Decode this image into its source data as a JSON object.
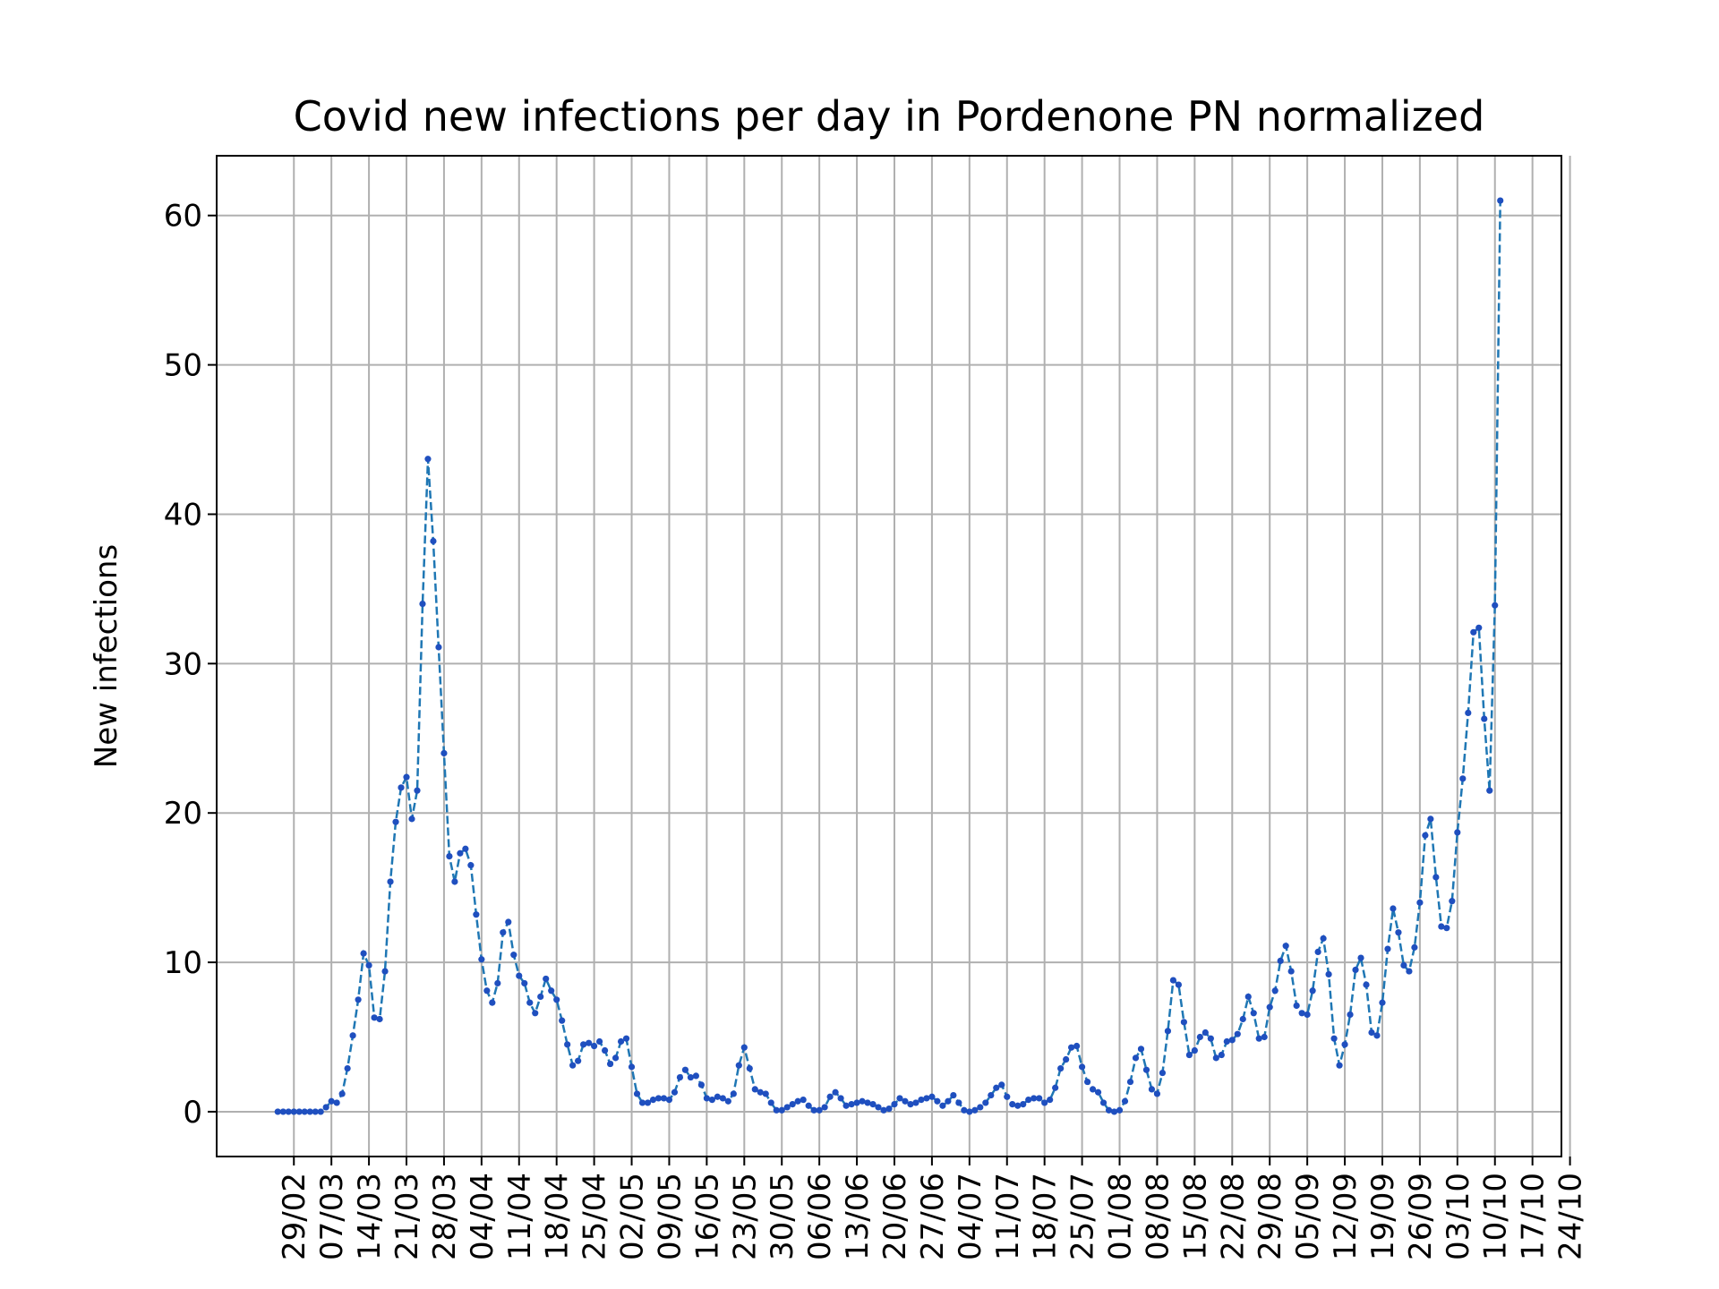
{
  "chart_data": {
    "type": "line",
    "title": "Covid new infections per day in Pordenone PN normalized",
    "xlabel": "",
    "ylabel": "New infections",
    "ylim": [
      -3.0,
      64.0
    ],
    "yticks": [
      0,
      10,
      20,
      30,
      40,
      50,
      60
    ],
    "grid": true,
    "legend": "none",
    "line_color": "#1f77b4",
    "marker_color": "#1f4fbf",
    "line_style": "dashed",
    "xticks": [
      {
        "label": "29/02",
        "day": 3
      },
      {
        "label": "07/03",
        "day": 10
      },
      {
        "label": "14/03",
        "day": 17
      },
      {
        "label": "21/03",
        "day": 24
      },
      {
        "label": "28/03",
        "day": 31
      },
      {
        "label": "04/04",
        "day": 38
      },
      {
        "label": "11/04",
        "day": 45
      },
      {
        "label": "18/04",
        "day": 52
      },
      {
        "label": "25/04",
        "day": 59
      },
      {
        "label": "02/05",
        "day": 66
      },
      {
        "label": "09/05",
        "day": 73
      },
      {
        "label": "16/05",
        "day": 80
      },
      {
        "label": "23/05",
        "day": 87
      },
      {
        "label": "30/05",
        "day": 94
      },
      {
        "label": "06/06",
        "day": 101
      },
      {
        "label": "13/06",
        "day": 108
      },
      {
        "label": "20/06",
        "day": 115
      },
      {
        "label": "27/06",
        "day": 122
      },
      {
        "label": "04/07",
        "day": 129
      },
      {
        "label": "11/07",
        "day": 136
      },
      {
        "label": "18/07",
        "day": 143
      },
      {
        "label": "25/07",
        "day": 150
      },
      {
        "label": "01/08",
        "day": 157
      },
      {
        "label": "08/08",
        "day": 164
      },
      {
        "label": "15/08",
        "day": 171
      },
      {
        "label": "22/08",
        "day": 178
      },
      {
        "label": "29/08",
        "day": 185
      },
      {
        "label": "05/09",
        "day": 192
      },
      {
        "label": "12/09",
        "day": 199
      },
      {
        "label": "19/09",
        "day": 206
      },
      {
        "label": "26/09",
        "day": 213
      },
      {
        "label": "03/10",
        "day": 220
      },
      {
        "label": "10/10",
        "day": 227
      },
      {
        "label": "17/10",
        "day": 234
      },
      {
        "label": "24/10",
        "day": 241
      }
    ],
    "series": [
      {
        "values": [
          0,
          0,
          0,
          0,
          0,
          0,
          0,
          0,
          0,
          0.3,
          0.7,
          0.6,
          1.2,
          2.9,
          5.1,
          7.5,
          10.6,
          9.8,
          6.3,
          6.2,
          9.4,
          15.4,
          19.4,
          21.7,
          22.4,
          19.6,
          21.5,
          34.0,
          43.7,
          38.2,
          31.1,
          24.0,
          17.1,
          15.4,
          17.3,
          17.6,
          16.5,
          13.2,
          10.2,
          8.1,
          7.3,
          8.6,
          12.0,
          12.7,
          10.5,
          9.1,
          8.6,
          7.3,
          6.6,
          7.7,
          8.9,
          8.1,
          7.5,
          6.1,
          4.5,
          3.1,
          3.4,
          4.5,
          4.6,
          4.4,
          4.7,
          4.1,
          3.2,
          3.6,
          4.7,
          4.9,
          3.0,
          1.2,
          0.6,
          0.6,
          0.8,
          0.9,
          0.9,
          0.8,
          1.3,
          2.3,
          2.8,
          2.3,
          2.4,
          1.8,
          0.9,
          0.8,
          1.0,
          0.9,
          0.7,
          1.2,
          3.1,
          4.3,
          2.9,
          1.5,
          1.3,
          1.2,
          0.6,
          0.1,
          0.1,
          0.3,
          0.5,
          0.7,
          0.8,
          0.4,
          0.1,
          0.1,
          0.3,
          1.0,
          1.3,
          0.9,
          0.4,
          0.5,
          0.6,
          0.7,
          0.6,
          0.5,
          0.3,
          0.1,
          0.2,
          0.5,
          0.9,
          0.7,
          0.5,
          0.6,
          0.8,
          0.9,
          1.0,
          0.7,
          0.4,
          0.7,
          1.1,
          0.6,
          0.1,
          0.0,
          0.1,
          0.3,
          0.6,
          1.1,
          1.6,
          1.8,
          1.0,
          0.5,
          0.4,
          0.5,
          0.8,
          0.9,
          0.9,
          0.6,
          0.8,
          1.6,
          2.9,
          3.5,
          4.3,
          4.4,
          3.0,
          2.0,
          1.5,
          1.3,
          0.6,
          0.1,
          0.0,
          0.1,
          0.7,
          2.0,
          3.6,
          4.2,
          2.8,
          1.5,
          1.2,
          2.6,
          5.4,
          8.8,
          8.5,
          6.0,
          3.8,
          4.1,
          5.0,
          5.3,
          4.9,
          3.6,
          3.8,
          4.7,
          4.8,
          5.2,
          6.2,
          7.7,
          6.6,
          4.9,
          5.0,
          7.0,
          8.1,
          10.1,
          11.1,
          9.4,
          7.1,
          6.6,
          6.5,
          8.1,
          10.7,
          11.6,
          9.2,
          4.9,
          3.1,
          4.5,
          6.5,
          9.5,
          10.3,
          8.5,
          5.3,
          5.1,
          7.3,
          10.9,
          13.6,
          12.0,
          9.8,
          9.4,
          11.0,
          14.0,
          18.5,
          19.6,
          15.7,
          12.4,
          12.3,
          14.1,
          18.7,
          22.3,
          26.7,
          32.1,
          32.4,
          26.3,
          21.5,
          33.9,
          61.0
        ]
      }
    ]
  }
}
